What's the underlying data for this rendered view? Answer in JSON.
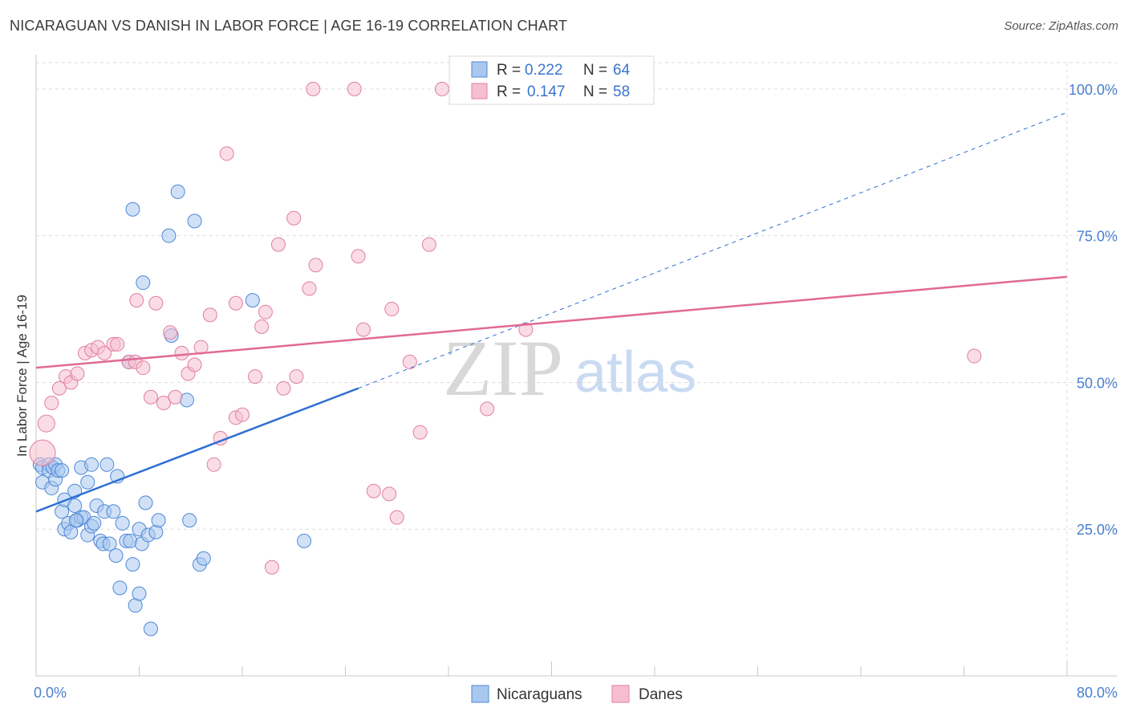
{
  "title": "NICARAGUAN VS DANISH IN LABOR FORCE | AGE 16-19 CORRELATION CHART",
  "source": "Source: ZipAtlas.com",
  "watermark": {
    "zip": "ZIP",
    "atlas": "atlas"
  },
  "colors": {
    "blue_fill": "#a9c8f0",
    "blue_stroke": "#4f88d6",
    "blue_line": "#2f6fd4",
    "pink_fill": "#f6bfd0",
    "pink_stroke": "#e07fa0",
    "pink_line": "#e06a95",
    "grid": "#dddddd",
    "tick_text": "#4a7fd0"
  },
  "legend": {
    "rows": [
      {
        "r_label": "R =",
        "r_value": "0.222",
        "n_label": "N =",
        "n_value": "64",
        "series": "blue"
      },
      {
        "r_label": "R =",
        "r_value": "0.147",
        "n_label": "N =",
        "n_value": "58",
        "series": "pink"
      }
    ]
  },
  "bottom_legend": [
    "Nicaraguans",
    "Danes"
  ],
  "chart_data": {
    "type": "scatter",
    "title": "NICARAGUAN VS DANISH IN LABOR FORCE | AGE 16-19 CORRELATION CHART",
    "ylabel": "In Labor Force | Age 16-19",
    "xlabel": "",
    "xlim": [
      0,
      80
    ],
    "ylim": [
      0,
      100
    ],
    "x_tick_labels": [
      "0.0%",
      "80.0%"
    ],
    "y_ticks": [
      25,
      50,
      75,
      100
    ],
    "y_tick_labels": [
      "25.0%",
      "50.0%",
      "75.0%",
      "100.0%"
    ],
    "grid": true,
    "series": [
      {
        "name": "Nicaraguans",
        "color": "#a9c8f0",
        "trend": {
          "x": [
            0,
            25
          ],
          "y": [
            28,
            49
          ],
          "dashed_to": [
            80,
            96
          ]
        },
        "points": [
          [
            0.3,
            36
          ],
          [
            0.5,
            35.5
          ],
          [
            0.5,
            33
          ],
          [
            1,
            36
          ],
          [
            1,
            35
          ],
          [
            1.3,
            35.5
          ],
          [
            1.2,
            32
          ],
          [
            1.5,
            36
          ],
          [
            1.5,
            33.5
          ],
          [
            1.7,
            35
          ],
          [
            2,
            35
          ],
          [
            2,
            28
          ],
          [
            2.2,
            30
          ],
          [
            2.2,
            25
          ],
          [
            2.5,
            26
          ],
          [
            2.7,
            24.5
          ],
          [
            3,
            29
          ],
          [
            3,
            31.5
          ],
          [
            3.2,
            26.5
          ],
          [
            3.5,
            27
          ],
          [
            3.5,
            35.5
          ],
          [
            3.7,
            27
          ],
          [
            4,
            24
          ],
          [
            4,
            33
          ],
          [
            4.3,
            36
          ],
          [
            4.3,
            25.5
          ],
          [
            4.5,
            26
          ],
          [
            4.7,
            29
          ],
          [
            5,
            23
          ],
          [
            5.2,
            22.5
          ],
          [
            5.3,
            28
          ],
          [
            5.5,
            36
          ],
          [
            5.7,
            22.5
          ],
          [
            6,
            28
          ],
          [
            6.2,
            20.5
          ],
          [
            6.3,
            34
          ],
          [
            6.5,
            15
          ],
          [
            6.7,
            26
          ],
          [
            7,
            23
          ],
          [
            7.2,
            53.5
          ],
          [
            7.3,
            23
          ],
          [
            7.5,
            79.5
          ],
          [
            7.5,
            19
          ],
          [
            7.7,
            12
          ],
          [
            8,
            14
          ],
          [
            8,
            25
          ],
          [
            8.2,
            22.5
          ],
          [
            8.5,
            29.5
          ],
          [
            8.7,
            24
          ],
          [
            8.9,
            8
          ],
          [
            9.3,
            24.5
          ],
          [
            9.5,
            26.5
          ],
          [
            10.3,
            75
          ],
          [
            10.5,
            58
          ],
          [
            11,
            82.5
          ],
          [
            11.7,
            47
          ],
          [
            11.9,
            26.5
          ],
          [
            12.3,
            77.5
          ],
          [
            12.7,
            19
          ],
          [
            13,
            20
          ],
          [
            16.8,
            64
          ],
          [
            20.8,
            23
          ],
          [
            8.3,
            67
          ],
          [
            3.1,
            26.5
          ]
        ]
      },
      {
        "name": "Danes",
        "color": "#f6bfd0",
        "trend": {
          "x": [
            0,
            80
          ],
          "y": [
            52.5,
            68
          ]
        },
        "points": [
          [
            0.5,
            38
          ],
          [
            0.8,
            43
          ],
          [
            1.2,
            46.5
          ],
          [
            1.8,
            49
          ],
          [
            2.3,
            51
          ],
          [
            2.7,
            50
          ],
          [
            3.2,
            51.5
          ],
          [
            3.8,
            55
          ],
          [
            4.3,
            55.5
          ],
          [
            4.8,
            56
          ],
          [
            5.3,
            55
          ],
          [
            6,
            56.5
          ],
          [
            6.3,
            56.5
          ],
          [
            7.2,
            53.5
          ],
          [
            7.7,
            53.5
          ],
          [
            7.8,
            64
          ],
          [
            8.3,
            52.5
          ],
          [
            8.9,
            47.5
          ],
          [
            9.3,
            63.5
          ],
          [
            9.9,
            46.5
          ],
          [
            10.4,
            58.5
          ],
          [
            10.8,
            47.5
          ],
          [
            11.3,
            55
          ],
          [
            11.8,
            51.5
          ],
          [
            12.3,
            53
          ],
          [
            12.8,
            56
          ],
          [
            13.5,
            61.5
          ],
          [
            13.8,
            36
          ],
          [
            14.3,
            40.5
          ],
          [
            15.5,
            63.5
          ],
          [
            15.5,
            44
          ],
          [
            16,
            44.5
          ],
          [
            14.8,
            89
          ],
          [
            17,
            51
          ],
          [
            17.5,
            59.5
          ],
          [
            17.8,
            62
          ],
          [
            18.3,
            18.5
          ],
          [
            18.8,
            73.5
          ],
          [
            19.2,
            49
          ],
          [
            20,
            78
          ],
          [
            20.2,
            51
          ],
          [
            21.2,
            66
          ],
          [
            21.7,
            70
          ],
          [
            21.5,
            100
          ],
          [
            24.7,
            100
          ],
          [
            25,
            71.5
          ],
          [
            25.4,
            59
          ],
          [
            26.2,
            31.5
          ],
          [
            27.4,
            31
          ],
          [
            27.6,
            62.5
          ],
          [
            28,
            27
          ],
          [
            29,
            53.5
          ],
          [
            29.8,
            41.5
          ],
          [
            30.5,
            73.5
          ],
          [
            31.5,
            100
          ],
          [
            35,
            45.5
          ],
          [
            38,
            59
          ],
          [
            72.8,
            54.5
          ]
        ]
      }
    ]
  }
}
